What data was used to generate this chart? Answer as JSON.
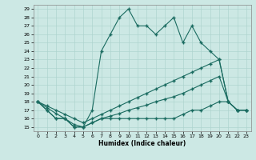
{
  "xlabel": "Humidex (Indice chaleur)",
  "xlim": [
    -0.5,
    23.5
  ],
  "ylim": [
    14.5,
    29.5
  ],
  "xticks": [
    0,
    1,
    2,
    3,
    4,
    5,
    6,
    7,
    8,
    9,
    10,
    11,
    12,
    13,
    14,
    15,
    16,
    17,
    18,
    19,
    20,
    21,
    22,
    23
  ],
  "yticks": [
    15,
    16,
    17,
    18,
    19,
    20,
    21,
    22,
    23,
    24,
    25,
    26,
    27,
    28,
    29
  ],
  "bg_color": "#cce8e4",
  "grid_color": "#afd4cf",
  "line_color": "#1a6b60",
  "line1_x": [
    0,
    1,
    2,
    3,
    4,
    5,
    6,
    7,
    8,
    9,
    10,
    11,
    12,
    13,
    14,
    15,
    16,
    17,
    18,
    19,
    20,
    21,
    22,
    23
  ],
  "line1_y": [
    18,
    17,
    16,
    16,
    15,
    15,
    17,
    24,
    26,
    28,
    29,
    27,
    27,
    26,
    27,
    28,
    25,
    27,
    25,
    24,
    23,
    18,
    17,
    17
  ],
  "line2_x": [
    0,
    1,
    2,
    3,
    4,
    5,
    6,
    7,
    8,
    9,
    10,
    11,
    12,
    13,
    14,
    15,
    16,
    17,
    18,
    19,
    20,
    21,
    22,
    23
  ],
  "line2_y": [
    18,
    17.5,
    17,
    16.5,
    16,
    15.5,
    16,
    16.5,
    17,
    17.5,
    18,
    18.5,
    19,
    19.5,
    20,
    20.5,
    21,
    21.5,
    22,
    22.5,
    23,
    18,
    17,
    17
  ],
  "line3_x": [
    0,
    1,
    2,
    3,
    4,
    5,
    6,
    7,
    8,
    9,
    10,
    11,
    12,
    13,
    14,
    15,
    16,
    17,
    18,
    19,
    20,
    21,
    22,
    23
  ],
  "line3_y": [
    18,
    17.3,
    16.6,
    16,
    15.3,
    15,
    15.5,
    16,
    16.3,
    16.6,
    17,
    17.3,
    17.6,
    18,
    18.3,
    18.6,
    19,
    19.5,
    20,
    20.5,
    21,
    18,
    17,
    17
  ],
  "line4_x": [
    0,
    1,
    2,
    3,
    4,
    5,
    6,
    7,
    8,
    9,
    10,
    11,
    12,
    13,
    14,
    15,
    16,
    17,
    18,
    19,
    20,
    21,
    22,
    23
  ],
  "line4_y": [
    18,
    17,
    16,
    16,
    15,
    15,
    15.5,
    16,
    16,
    16,
    16,
    16,
    16,
    16,
    16,
    16,
    16.5,
    17,
    17,
    17.5,
    18,
    18,
    17,
    17
  ]
}
